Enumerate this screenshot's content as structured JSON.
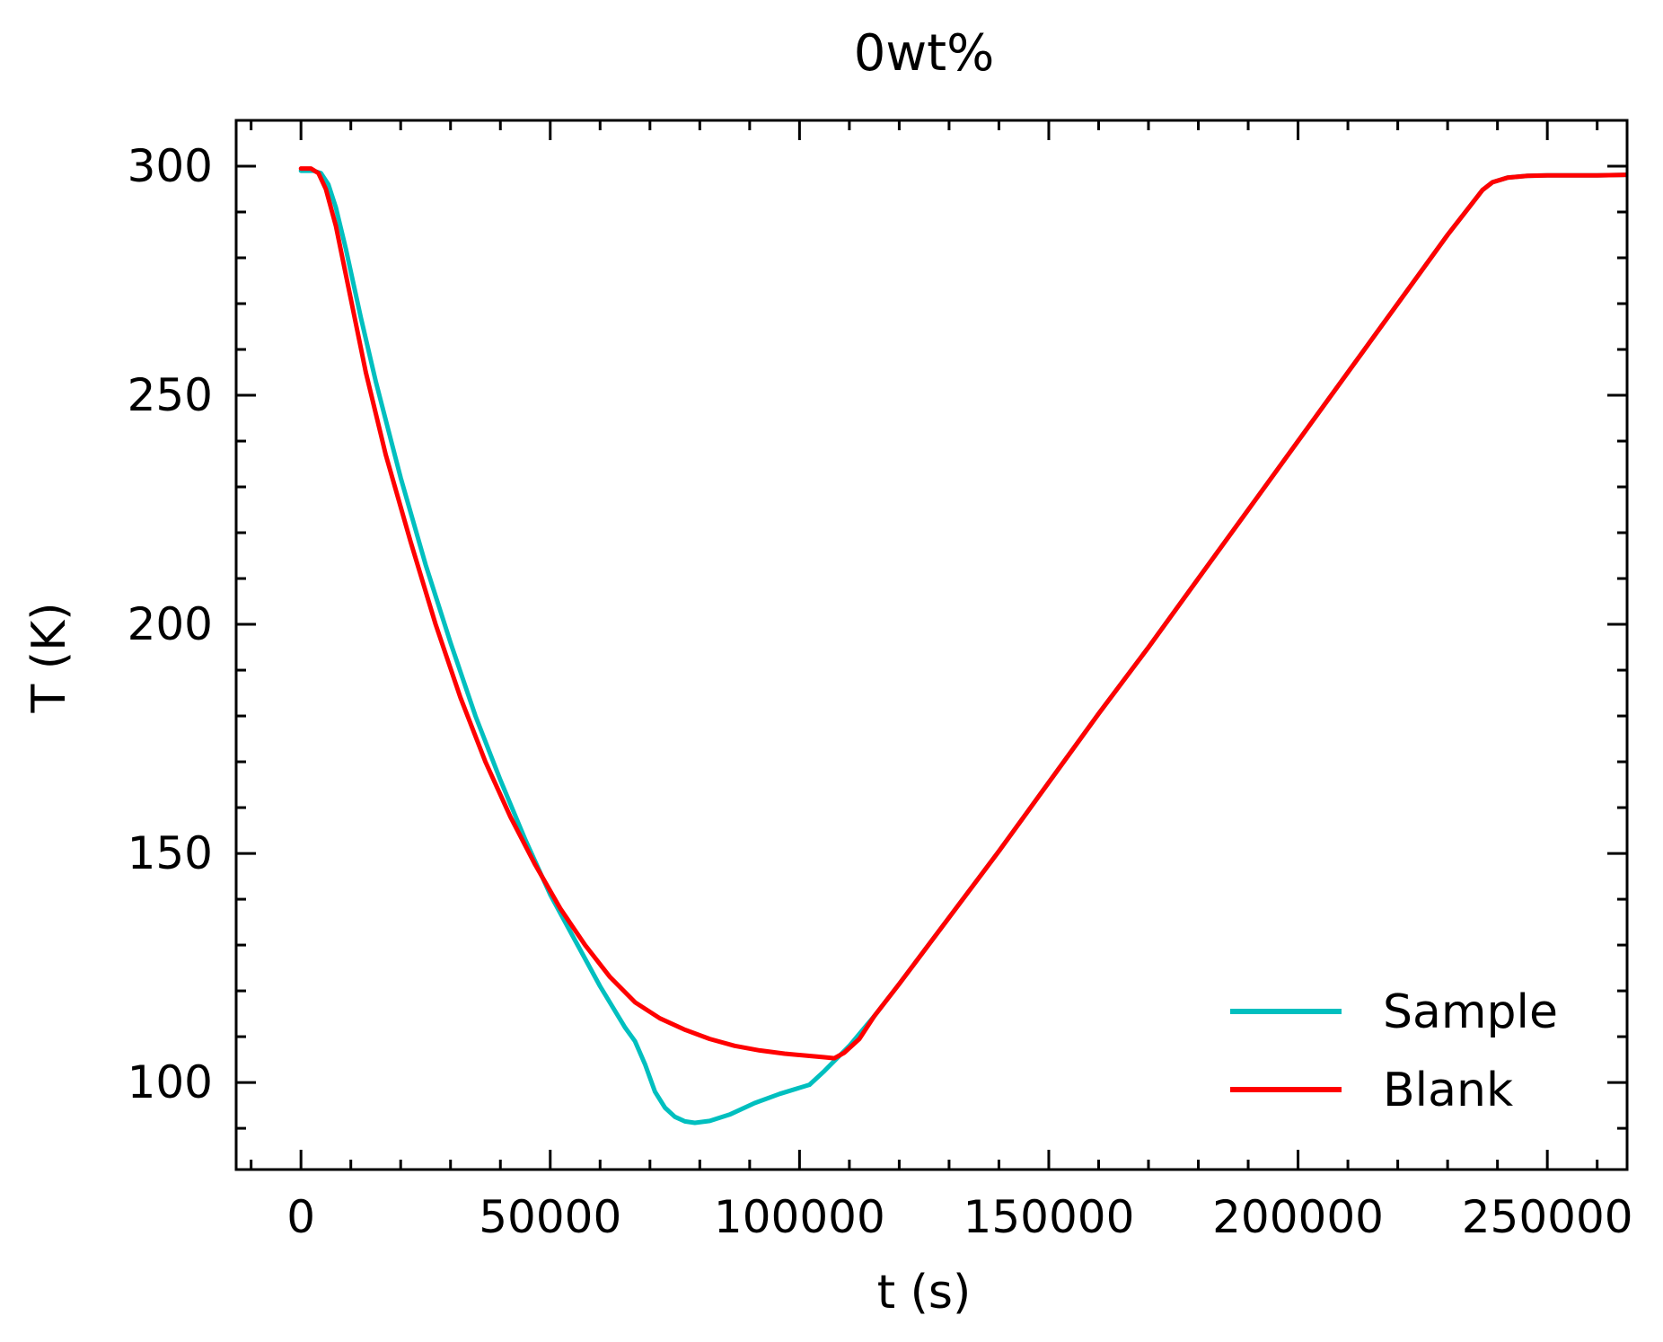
{
  "chart_data": {
    "type": "line",
    "title": "0wt%",
    "xlabel": "t (s)",
    "ylabel": "T (K)",
    "xlim": [
      -13000,
      266000
    ],
    "ylim": [
      81,
      310
    ],
    "x_ticks": [
      0,
      50000,
      100000,
      150000,
      200000,
      250000
    ],
    "y_ticks": [
      100,
      150,
      200,
      250,
      300
    ],
    "grid": false,
    "legend_position": "lower-right",
    "series": [
      {
        "name": "Sample",
        "color": "#00bfbf",
        "points": [
          [
            0,
            299
          ],
          [
            2500,
            299
          ],
          [
            4000,
            298.5
          ],
          [
            5500,
            296
          ],
          [
            7000,
            291
          ],
          [
            9000,
            282
          ],
          [
            12000,
            267
          ],
          [
            15000,
            253
          ],
          [
            20000,
            232
          ],
          [
            25000,
            213
          ],
          [
            30000,
            196
          ],
          [
            35000,
            180
          ],
          [
            40000,
            166
          ],
          [
            45000,
            153
          ],
          [
            50000,
            141
          ],
          [
            55000,
            131
          ],
          [
            60000,
            121
          ],
          [
            65000,
            112
          ],
          [
            67000,
            109
          ],
          [
            69000,
            104
          ],
          [
            71000,
            98
          ],
          [
            73000,
            94.5
          ],
          [
            75000,
            92.5
          ],
          [
            77000,
            91.5
          ],
          [
            79000,
            91.2
          ],
          [
            82000,
            91.6
          ],
          [
            86000,
            93
          ],
          [
            91000,
            95.5
          ],
          [
            96000,
            97.5
          ],
          [
            102000,
            99.5
          ],
          [
            105000,
            102.5
          ],
          [
            110000,
            108
          ],
          [
            115000,
            114.5
          ],
          [
            120000,
            121.5
          ],
          [
            130000,
            136
          ],
          [
            140000,
            150.5
          ],
          [
            150000,
            165.5
          ],
          [
            160000,
            180.5
          ],
          [
            170000,
            195
          ],
          [
            180000,
            210
          ],
          [
            190000,
            225
          ],
          [
            200000,
            240
          ],
          [
            210000,
            255
          ],
          [
            220000,
            270
          ],
          [
            230000,
            285
          ],
          [
            235000,
            292
          ],
          [
            237000,
            294.8
          ],
          [
            239000,
            296.5
          ],
          [
            242000,
            297.5
          ],
          [
            246000,
            297.9
          ],
          [
            250000,
            298
          ],
          [
            260000,
            298
          ],
          [
            270000,
            298.2
          ],
          [
            280000,
            298.4
          ],
          [
            283000,
            298.5
          ]
        ]
      },
      {
        "name": "Blank",
        "color": "#ff0000",
        "points": [
          [
            0,
            299.5
          ],
          [
            2000,
            299.5
          ],
          [
            3500,
            298.5
          ],
          [
            5000,
            295
          ],
          [
            7000,
            287
          ],
          [
            10000,
            271
          ],
          [
            13000,
            255
          ],
          [
            17000,
            237
          ],
          [
            22000,
            218
          ],
          [
            27000,
            200
          ],
          [
            32000,
            184
          ],
          [
            37000,
            170
          ],
          [
            42000,
            158
          ],
          [
            47000,
            147.5
          ],
          [
            52000,
            138
          ],
          [
            57000,
            130
          ],
          [
            62000,
            123
          ],
          [
            67000,
            117.5
          ],
          [
            72000,
            114
          ],
          [
            77000,
            111.5
          ],
          [
            82000,
            109.5
          ],
          [
            87000,
            108
          ],
          [
            92000,
            107
          ],
          [
            97000,
            106.3
          ],
          [
            102000,
            105.8
          ],
          [
            105000,
            105.5
          ],
          [
            107000,
            105.3
          ],
          [
            109000,
            106.5
          ],
          [
            112000,
            109.5
          ],
          [
            115000,
            114.5
          ],
          [
            120000,
            121.5
          ],
          [
            130000,
            136
          ],
          [
            140000,
            150.5
          ],
          [
            150000,
            165.5
          ],
          [
            160000,
            180.5
          ],
          [
            170000,
            195
          ],
          [
            180000,
            210
          ],
          [
            190000,
            225
          ],
          [
            200000,
            240
          ],
          [
            210000,
            255
          ],
          [
            220000,
            270
          ],
          [
            230000,
            285
          ],
          [
            235000,
            292
          ],
          [
            237000,
            294.8
          ],
          [
            239000,
            296.5
          ],
          [
            242000,
            297.5
          ],
          [
            246000,
            297.9
          ],
          [
            250000,
            298
          ],
          [
            260000,
            298
          ],
          [
            270000,
            298.2
          ],
          [
            280000,
            298.4
          ],
          [
            283000,
            298.5
          ]
        ]
      }
    ]
  }
}
